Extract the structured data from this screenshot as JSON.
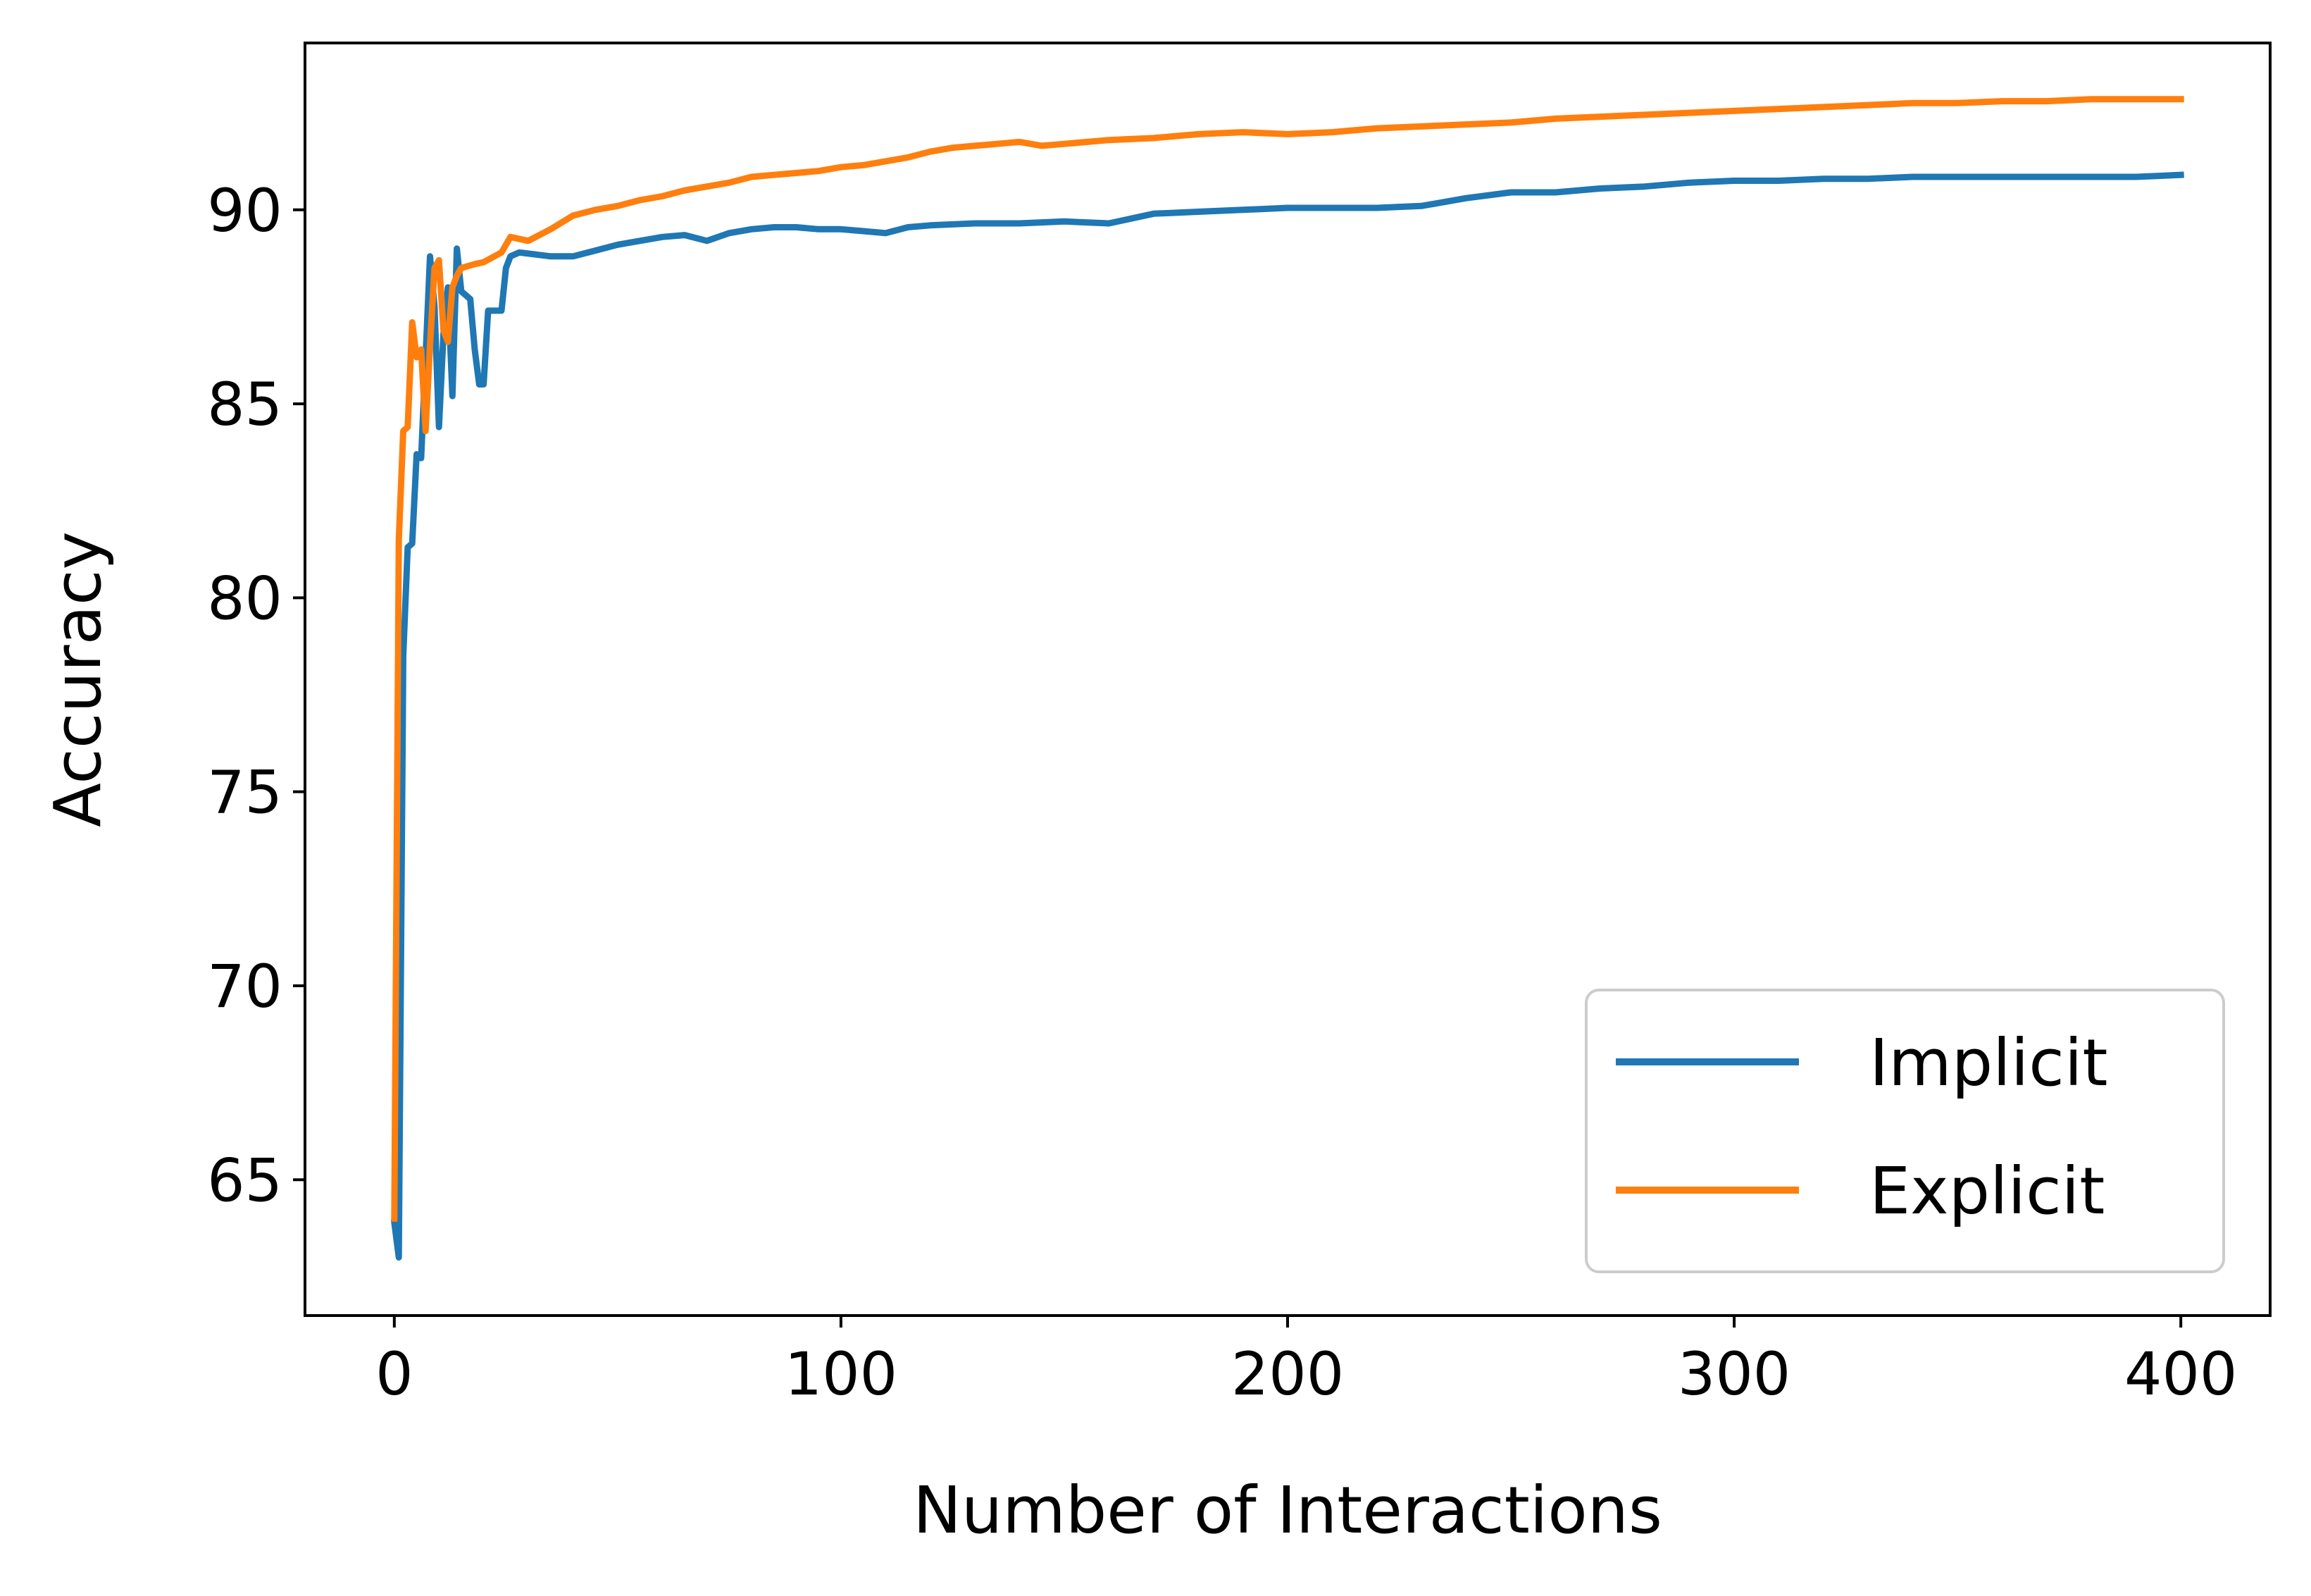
{
  "chart_data": {
    "type": "line",
    "title": "",
    "xlabel": "Number of Interactions",
    "ylabel": "Accuracy",
    "xlim": [
      -20,
      420
    ],
    "ylim": [
      61.5,
      94.3
    ],
    "xticks": [
      0,
      100,
      200,
      300,
      400
    ],
    "yticks": [
      65,
      70,
      75,
      80,
      85,
      90
    ],
    "grid": false,
    "legend_position": "lower-right",
    "series": [
      {
        "name": "Implicit",
        "color": "#1f77b4",
        "points": [
          [
            0,
            63.9
          ],
          [
            1,
            63.0
          ],
          [
            2,
            78.5
          ],
          [
            3,
            81.3
          ],
          [
            4,
            81.4
          ],
          [
            5,
            83.7
          ],
          [
            6,
            83.6
          ],
          [
            7,
            86.2
          ],
          [
            8,
            88.8
          ],
          [
            9,
            87.5
          ],
          [
            10,
            84.4
          ],
          [
            11,
            86.8
          ],
          [
            12,
            88.0
          ],
          [
            13,
            85.2
          ],
          [
            14,
            89.0
          ],
          [
            15,
            87.9
          ],
          [
            16,
            87.8
          ],
          [
            17,
            87.7
          ],
          [
            18,
            86.4
          ],
          [
            19,
            85.5
          ],
          [
            20,
            85.5
          ],
          [
            21,
            87.4
          ],
          [
            22,
            87.4
          ],
          [
            23,
            87.4
          ],
          [
            24,
            87.4
          ],
          [
            25,
            88.5
          ],
          [
            26,
            88.8
          ],
          [
            28,
            88.9
          ],
          [
            35,
            88.8
          ],
          [
            40,
            88.8
          ],
          [
            45,
            88.95
          ],
          [
            50,
            89.1
          ],
          [
            55,
            89.2
          ],
          [
            60,
            89.3
          ],
          [
            65,
            89.35
          ],
          [
            70,
            89.2
          ],
          [
            75,
            89.4
          ],
          [
            80,
            89.5
          ],
          [
            85,
            89.55
          ],
          [
            90,
            89.55
          ],
          [
            95,
            89.5
          ],
          [
            100,
            89.5
          ],
          [
            105,
            89.45
          ],
          [
            110,
            89.4
          ],
          [
            115,
            89.55
          ],
          [
            120,
            89.6
          ],
          [
            130,
            89.65
          ],
          [
            140,
            89.65
          ],
          [
            150,
            89.7
          ],
          [
            160,
            89.65
          ],
          [
            170,
            89.9
          ],
          [
            180,
            89.95
          ],
          [
            190,
            90.0
          ],
          [
            200,
            90.05
          ],
          [
            210,
            90.05
          ],
          [
            220,
            90.05
          ],
          [
            230,
            90.1
          ],
          [
            240,
            90.3
          ],
          [
            250,
            90.45
          ],
          [
            260,
            90.45
          ],
          [
            270,
            90.55
          ],
          [
            280,
            90.6
          ],
          [
            290,
            90.7
          ],
          [
            300,
            90.75
          ],
          [
            310,
            90.75
          ],
          [
            320,
            90.8
          ],
          [
            330,
            90.8
          ],
          [
            340,
            90.85
          ],
          [
            350,
            90.85
          ],
          [
            360,
            90.85
          ],
          [
            370,
            90.85
          ],
          [
            380,
            90.85
          ],
          [
            390,
            90.85
          ],
          [
            400,
            90.9
          ]
        ]
      },
      {
        "name": "Explicit",
        "color": "#ff7f0e",
        "points": [
          [
            0,
            64.0
          ],
          [
            1,
            81.5
          ],
          [
            2,
            84.3
          ],
          [
            3,
            84.4
          ],
          [
            4,
            87.1
          ],
          [
            5,
            86.2
          ],
          [
            6,
            86.4
          ],
          [
            7,
            84.3
          ],
          [
            8,
            86.5
          ],
          [
            9,
            88.5
          ],
          [
            10,
            88.7
          ],
          [
            11,
            86.9
          ],
          [
            12,
            86.6
          ],
          [
            13,
            88.0
          ],
          [
            14,
            88.3
          ],
          [
            15,
            88.5
          ],
          [
            18,
            88.6
          ],
          [
            20,
            88.65
          ],
          [
            24,
            88.9
          ],
          [
            26,
            89.3
          ],
          [
            30,
            89.2
          ],
          [
            35,
            89.5
          ],
          [
            40,
            89.85
          ],
          [
            45,
            90.0
          ],
          [
            50,
            90.1
          ],
          [
            55,
            90.25
          ],
          [
            60,
            90.35
          ],
          [
            65,
            90.5
          ],
          [
            70,
            90.6
          ],
          [
            75,
            90.7
          ],
          [
            80,
            90.85
          ],
          [
            85,
            90.9
          ],
          [
            90,
            90.95
          ],
          [
            95,
            91.0
          ],
          [
            100,
            91.1
          ],
          [
            105,
            91.15
          ],
          [
            110,
            91.25
          ],
          [
            115,
            91.35
          ],
          [
            120,
            91.5
          ],
          [
            125,
            91.6
          ],
          [
            130,
            91.65
          ],
          [
            135,
            91.7
          ],
          [
            140,
            91.75
          ],
          [
            145,
            91.65
          ],
          [
            150,
            91.7
          ],
          [
            160,
            91.8
          ],
          [
            170,
            91.85
          ],
          [
            180,
            91.95
          ],
          [
            190,
            92.0
          ],
          [
            200,
            91.95
          ],
          [
            210,
            92.0
          ],
          [
            220,
            92.1
          ],
          [
            230,
            92.15
          ],
          [
            240,
            92.2
          ],
          [
            250,
            92.25
          ],
          [
            260,
            92.35
          ],
          [
            270,
            92.4
          ],
          [
            280,
            92.45
          ],
          [
            290,
            92.5
          ],
          [
            300,
            92.55
          ],
          [
            310,
            92.6
          ],
          [
            320,
            92.65
          ],
          [
            330,
            92.7
          ],
          [
            340,
            92.75
          ],
          [
            350,
            92.75
          ],
          [
            360,
            92.8
          ],
          [
            370,
            92.8
          ],
          [
            380,
            92.85
          ],
          [
            390,
            92.85
          ],
          [
            400,
            92.85
          ]
        ]
      }
    ]
  }
}
